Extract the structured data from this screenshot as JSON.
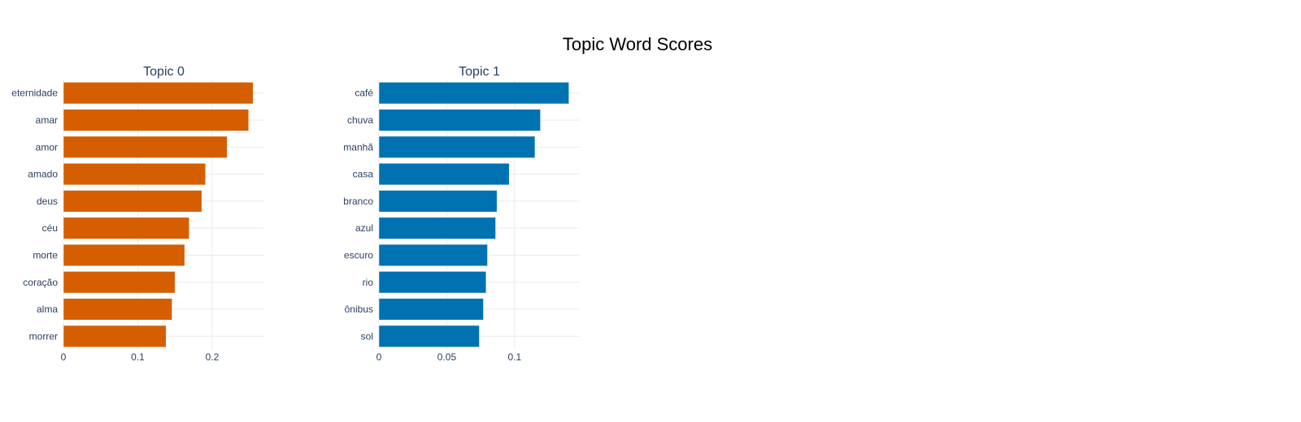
{
  "title": "Topic Word Scores",
  "chart_data": [
    {
      "type": "bar",
      "orientation": "horizontal",
      "title": "Topic 0",
      "color": "#d55e00",
      "categories": [
        "eternidade",
        "amar",
        "amor",
        "amado",
        "deus",
        "céu",
        "morte",
        "coração",
        "alma",
        "morrer"
      ],
      "values": [
        0.255,
        0.249,
        0.22,
        0.191,
        0.186,
        0.169,
        0.163,
        0.15,
        0.146,
        0.138
      ],
      "xlim": [
        0,
        0.27
      ],
      "xticks": [
        0,
        0.1,
        0.2
      ],
      "xtick_labels": [
        "0",
        "0.1",
        "0.2"
      ],
      "grid": true
    },
    {
      "type": "bar",
      "orientation": "horizontal",
      "title": "Topic 1",
      "color": "#0072b2",
      "categories": [
        "café",
        "chuva",
        "manhã",
        "casa",
        "branco",
        "azul",
        "escuro",
        "rio",
        "ônibus",
        "sol"
      ],
      "values": [
        0.14,
        0.119,
        0.115,
        0.096,
        0.087,
        0.086,
        0.08,
        0.079,
        0.077,
        0.074
      ],
      "xlim": [
        0,
        0.148
      ],
      "xticks": [
        0,
        0.05,
        0.1
      ],
      "xtick_labels": [
        "0",
        "0.05",
        "0.1"
      ],
      "grid": true
    }
  ]
}
